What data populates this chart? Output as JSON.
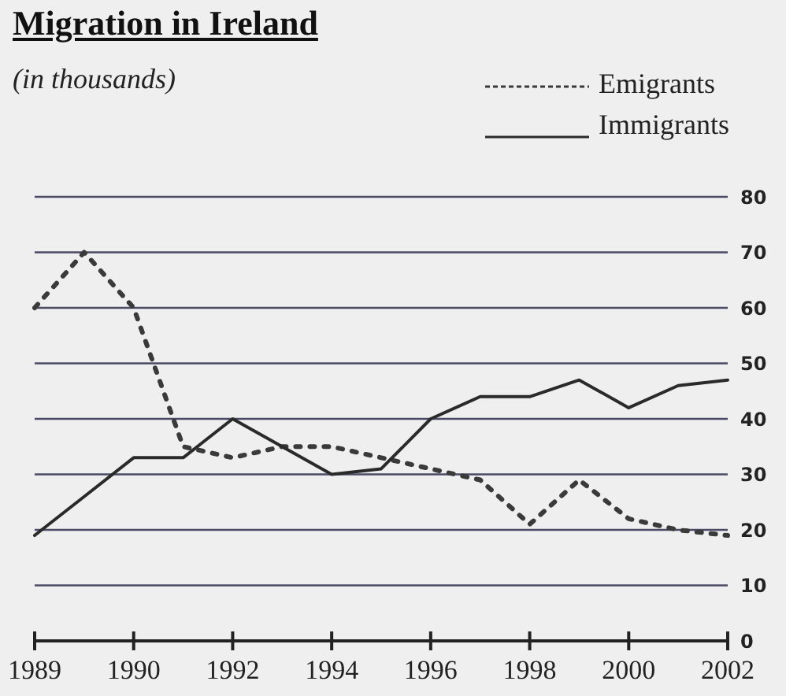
{
  "chart_data": {
    "type": "line",
    "title": "Migration in Ireland",
    "subtitle": "(in thousands)",
    "categories": [
      "1989",
      null,
      "1990",
      null,
      "1992",
      null,
      "1994",
      null,
      "1996",
      null,
      "1998",
      null,
      "2000",
      null,
      "2002"
    ],
    "series": [
      {
        "name": "Emigrants",
        "color": "#3a3a3a",
        "line_style": "dotted",
        "values": [
          60,
          70,
          60,
          35,
          33,
          35,
          35,
          33,
          31,
          29,
          21,
          29,
          22,
          20,
          19
        ]
      },
      {
        "name": "Immigrants",
        "color": "#2a2a2a",
        "line_style": "solid",
        "values": [
          19,
          26,
          33,
          33,
          40,
          35,
          30,
          31,
          40,
          44,
          44,
          47,
          42,
          46,
          47
        ]
      }
    ],
    "ylim": [
      0,
      80
    ],
    "yticks": [
      0,
      10,
      20,
      30,
      40,
      50,
      60,
      70,
      80
    ],
    "grid": "y",
    "legend": "top right",
    "marker": "none"
  }
}
